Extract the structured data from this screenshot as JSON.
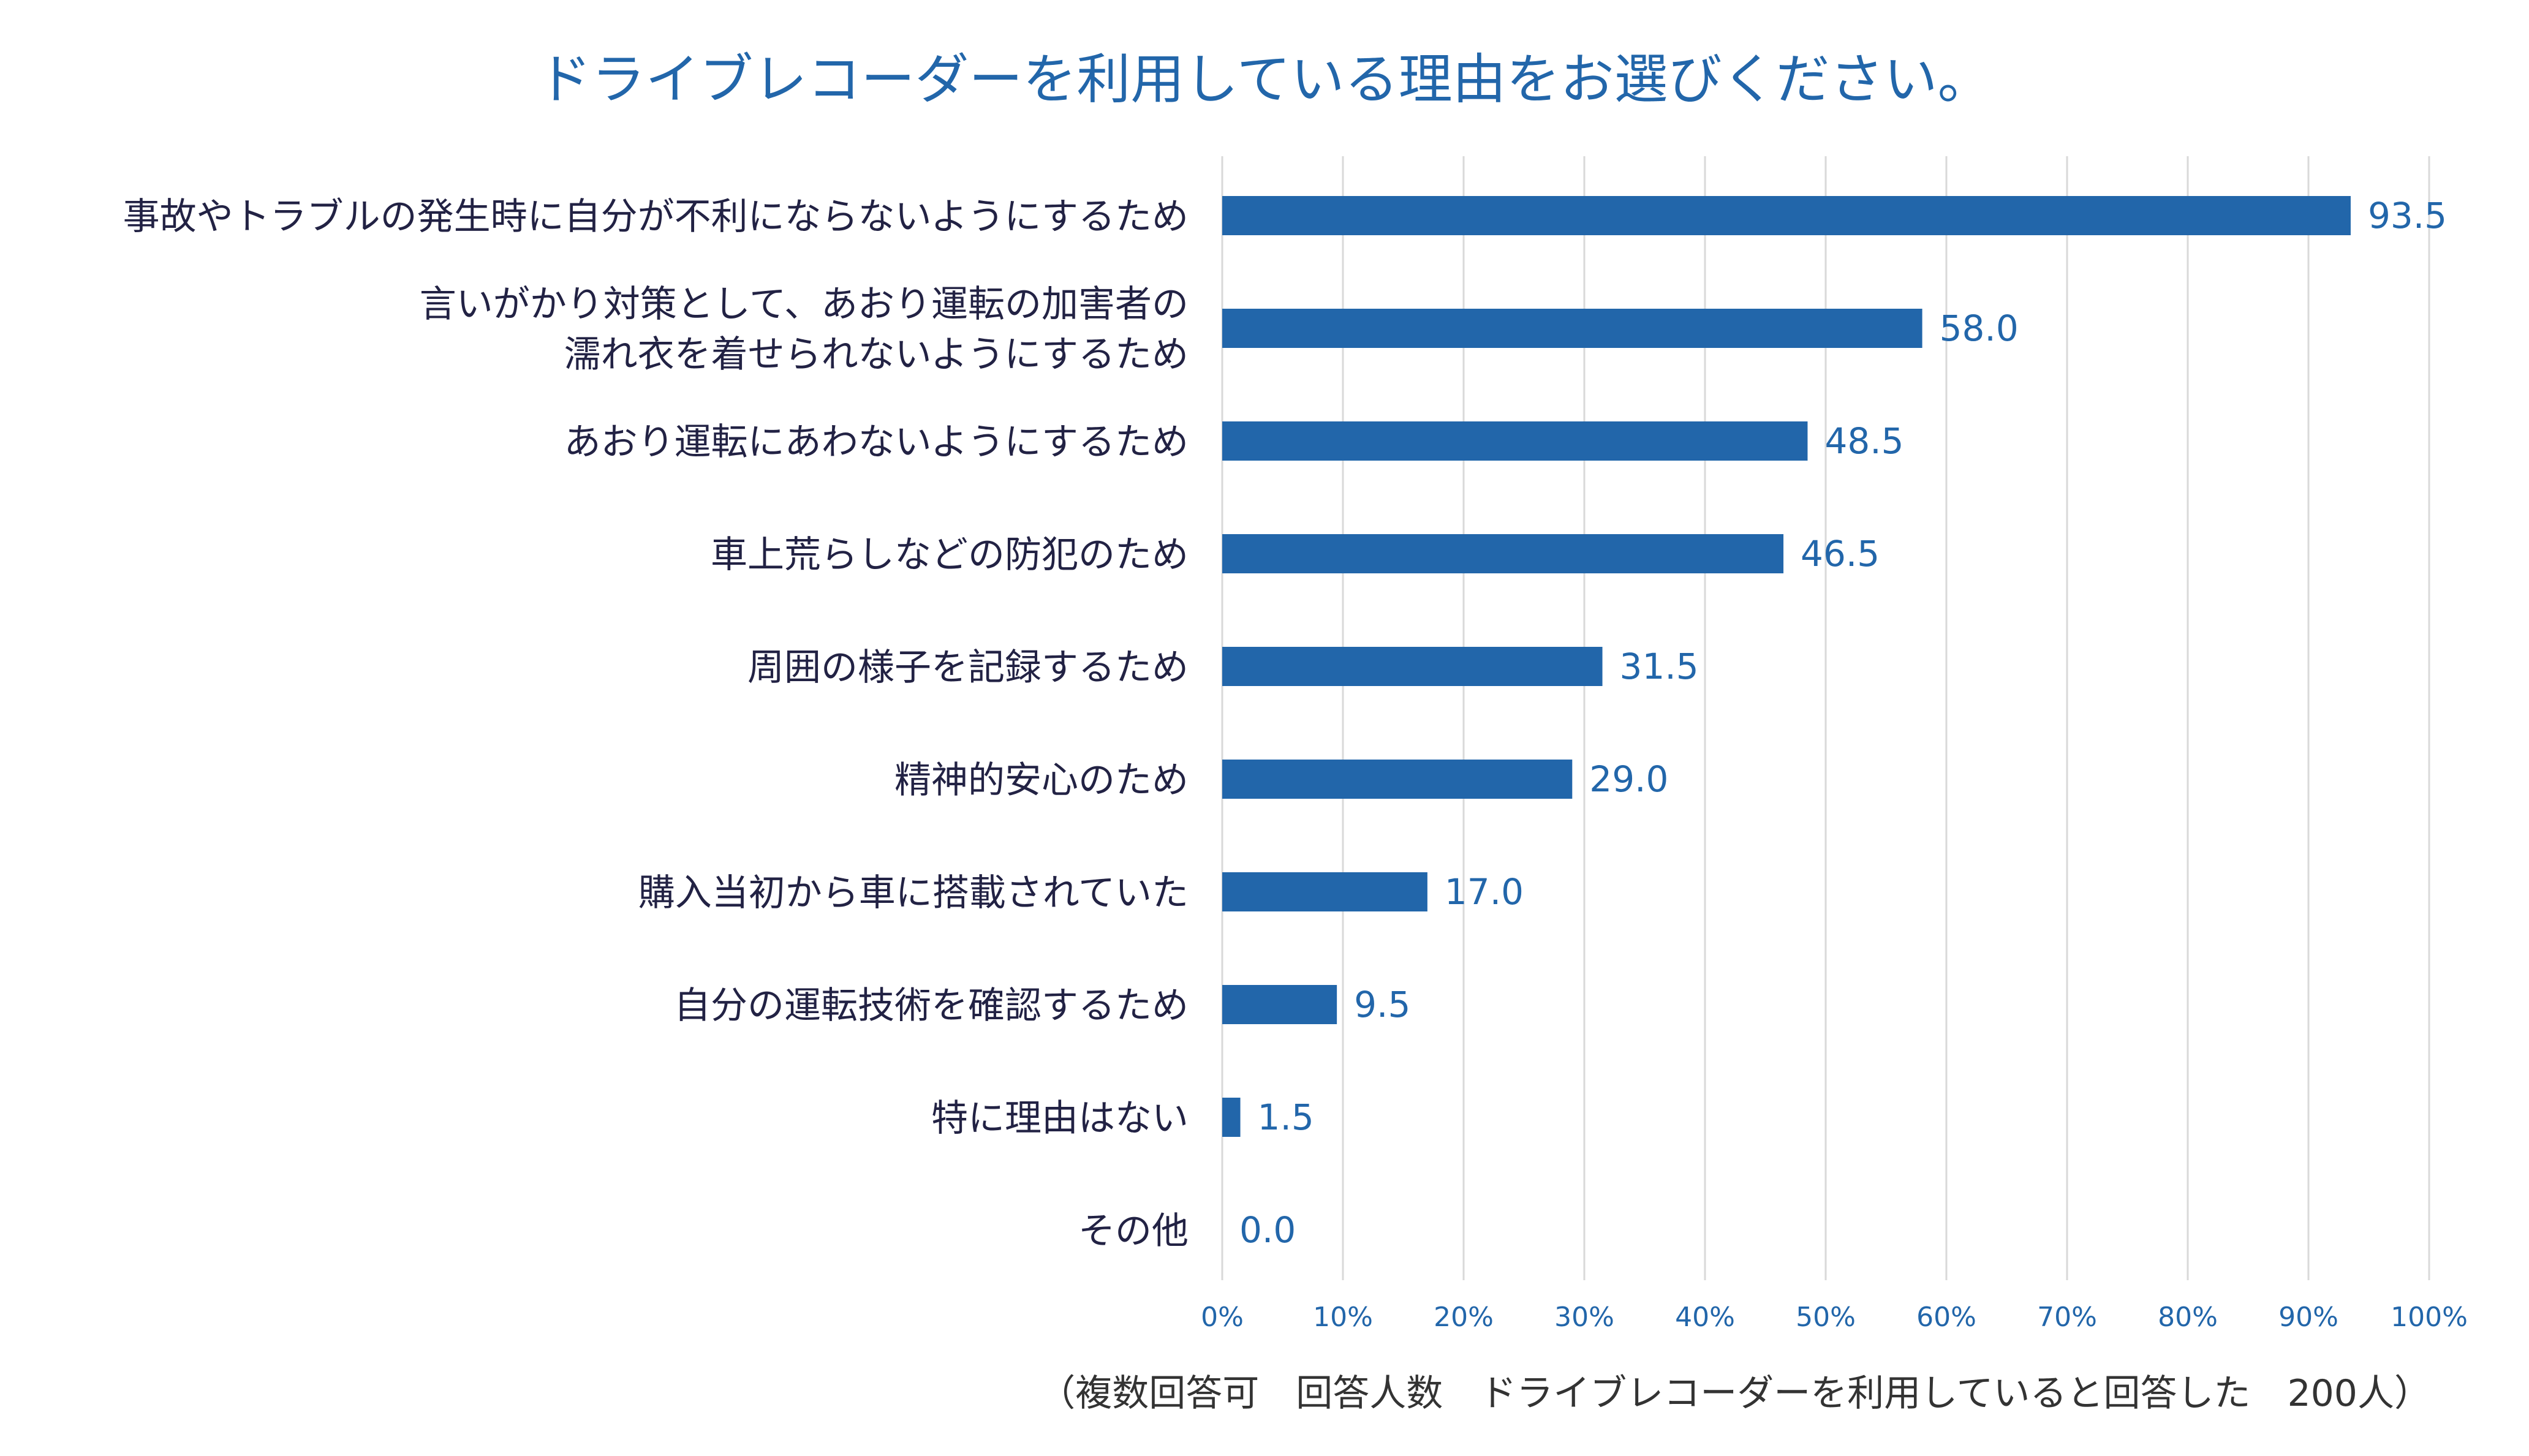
{
  "chart_data": {
    "type": "bar",
    "orientation": "horizontal",
    "title": "ドライブレコーダーを利用している理由をお選びください。",
    "categories": [
      [
        "事故やトラブルの発生時に自分が不利にならないようにするため"
      ],
      [
        "言いがかり対策として、あおり運転の加害者の",
        "濡れ衣を着せられないようにするため"
      ],
      [
        "あおり運転にあわないようにするため"
      ],
      [
        "車上荒らしなどの防犯のため"
      ],
      [
        "周囲の様子を記録するため"
      ],
      [
        "精神的安心のため"
      ],
      [
        "購入当初から車に搭載されていた"
      ],
      [
        "自分の運転技術を確認するため"
      ],
      [
        "特に理由はない"
      ],
      [
        "その他"
      ]
    ],
    "values": [
      93.5,
      58.0,
      48.5,
      46.5,
      31.5,
      29.0,
      17.0,
      9.5,
      1.5,
      0.0
    ],
    "value_labels": [
      "93.5",
      "58.0",
      "48.5",
      "46.5",
      "31.5",
      "29.0",
      "17.0",
      "9.5",
      "1.5",
      "0.0"
    ],
    "xlim": [
      0,
      100
    ],
    "xticks": [
      "0%",
      "10%",
      "20%",
      "30%",
      "40%",
      "50%",
      "60%",
      "70%",
      "80%",
      "90%",
      "100%"
    ],
    "grid": true,
    "bar_color": "#2266aa",
    "note": "（複数回答可　回答人数　ドライブレコーダーを利用していると回答した　200人）"
  }
}
